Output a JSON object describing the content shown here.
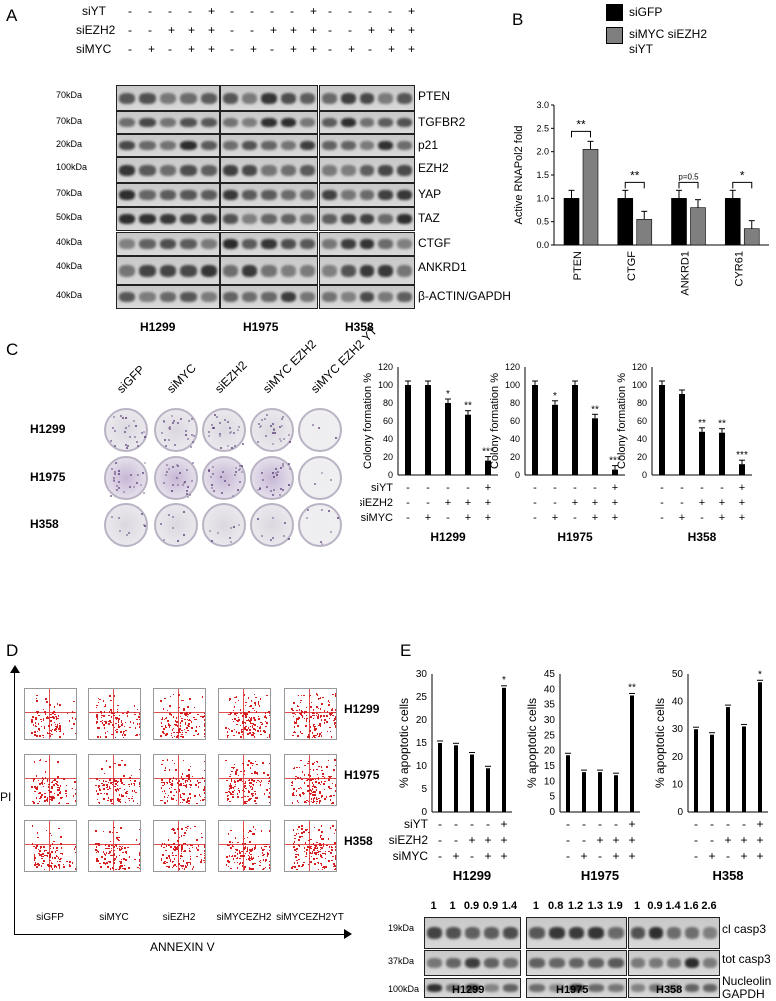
{
  "panels": {
    "A": "A",
    "B": "B",
    "C": "C",
    "D": "D",
    "E": "E"
  },
  "panelA": {
    "treat_labels": [
      "siYT",
      "siEZH2",
      "siMYC"
    ],
    "treat_signs": [
      [
        "-",
        "-",
        "-",
        "-",
        "+"
      ],
      [
        "-",
        "-",
        "+",
        "+",
        "+"
      ],
      [
        "-",
        "+",
        "-",
        "+",
        "+"
      ]
    ],
    "mw_labels": [
      "70kDa",
      "70kDa",
      "20kDa",
      "100kDa",
      "70kDa",
      "50kDa",
      "40kDa",
      "40kDa",
      "40kDa"
    ],
    "proteins": [
      "PTEN",
      "TGFBR2",
      "p21",
      "EZH2",
      "YAP",
      "TAZ",
      "CTGF",
      "ANKRD1",
      "β-ACTIN/GAPDH"
    ],
    "cell_lines": [
      "H1299",
      "H1975",
      "H358"
    ]
  },
  "panelB": {
    "legend": [
      "siGFP",
      "siMYC siEZH2\nsiYT"
    ],
    "legend_line1": "siMYC siEZH2",
    "legend_line2": "siYT",
    "colors": {
      "siGFP": "#000000",
      "treated": "#7f7f7f"
    },
    "chart_data": {
      "type": "bar",
      "ylabel": "Active RNAPol2 fold",
      "ylim": [
        0,
        3.0
      ],
      "yticks": [
        "0.0",
        "0.5",
        "1.0",
        "1.5",
        "2.0",
        "2.5",
        "3.0"
      ],
      "categories": [
        "PTEN",
        "CTGF",
        "ANKRD1",
        "CYR61"
      ],
      "series": [
        {
          "name": "siGFP",
          "values": [
            1.0,
            1.0,
            1.0,
            1.0
          ]
        },
        {
          "name": "siMYC siEZH2 siYT",
          "values": [
            2.05,
            0.55,
            0.8,
            0.35
          ]
        }
      ],
      "annotations": [
        "**",
        "**",
        "p=0.5",
        "*"
      ]
    }
  },
  "panelC": {
    "column_labels": [
      "siGFP",
      "siMYC",
      "siEZH2",
      "siMYC EZH2",
      "siMYC EZH2 YT"
    ],
    "row_labels": [
      "H1299",
      "H1975",
      "H358"
    ],
    "treat_labels": [
      "siYT",
      "siEZH2",
      "siMYC"
    ],
    "treat_signs": [
      [
        "-",
        "-",
        "-",
        "-",
        "+"
      ],
      [
        "-",
        "-",
        "+",
        "+",
        "+"
      ],
      [
        "-",
        "+",
        "-",
        "+",
        "+"
      ]
    ],
    "chart_data": [
      {
        "type": "bar",
        "title": "H1299",
        "ylabel": "Colony formation %",
        "ylim": [
          0,
          120
        ],
        "yticks": [
          "0",
          "10",
          "20",
          "30",
          "40",
          "50",
          "60",
          "70",
          "80",
          "90",
          "100",
          "110",
          "120"
        ],
        "values": [
          100,
          100,
          80,
          67,
          16
        ],
        "annotations": [
          "",
          "",
          "*",
          "**",
          "***"
        ]
      },
      {
        "type": "bar",
        "title": "H1975",
        "ylabel": "Colony formation %",
        "ylim": [
          0,
          120
        ],
        "yticks": [
          "0",
          "10",
          "20",
          "30",
          "40",
          "50",
          "60",
          "70",
          "80",
          "90",
          "100",
          "110",
          "120"
        ],
        "values": [
          100,
          78,
          100,
          63,
          6
        ],
        "annotations": [
          "",
          "*",
          "",
          "**",
          "***"
        ]
      },
      {
        "type": "bar",
        "title": "H358",
        "ylabel": "Colony formation %",
        "ylim": [
          0,
          120
        ],
        "yticks": [
          "0",
          "10",
          "20",
          "30",
          "40",
          "50",
          "60",
          "70",
          "80",
          "90",
          "100",
          "110",
          "120"
        ],
        "values": [
          100,
          90,
          48,
          47,
          12
        ],
        "annotations": [
          "",
          "",
          "**",
          "**",
          "***"
        ]
      }
    ]
  },
  "panelD": {
    "ylabel": "PI",
    "xlabel": "ANNEXIN V",
    "row_labels": [
      "H1299",
      "H1975",
      "H358"
    ],
    "column_labels": [
      "siGFP",
      "siMYC",
      "siEZH2",
      "siMYCEZH2",
      "siMYCEZH2YT"
    ]
  },
  "panelE": {
    "treat_labels": [
      "siYT",
      "siEZH2",
      "siMYC"
    ],
    "treat_signs": [
      [
        "-",
        "-",
        "-",
        "-",
        "+"
      ],
      [
        "-",
        "-",
        "+",
        "+",
        "+"
      ],
      [
        "-",
        "+",
        "-",
        "+",
        "+"
      ]
    ],
    "chart_data": [
      {
        "type": "bar",
        "title": "H1299",
        "ylabel": "% apoptotic cells",
        "ylim": [
          0,
          30
        ],
        "yticks": [
          "0",
          "5",
          "10",
          "15",
          "20",
          "25",
          "30"
        ],
        "values": [
          15,
          14.5,
          12.5,
          9.5,
          27
        ],
        "annotations": [
          "",
          "",
          "",
          "",
          "*"
        ]
      },
      {
        "type": "bar",
        "title": "H1975",
        "ylabel": "% apoptotic cells",
        "ylim": [
          0,
          45
        ],
        "yticks": [
          "0",
          "5",
          "10",
          "15",
          "20",
          "25",
          "30",
          "35",
          "40",
          "45"
        ],
        "values": [
          18.5,
          13,
          13,
          12,
          38
        ],
        "annotations": [
          "",
          "",
          "",
          "",
          "**"
        ]
      },
      {
        "type": "bar",
        "title": "H358",
        "ylabel": "% apoptotic cells",
        "ylim": [
          0,
          50
        ],
        "yticks": [
          "0",
          "10",
          "20",
          "30",
          "40",
          "50"
        ],
        "values": [
          30,
          28,
          38,
          31,
          47
        ],
        "annotations": [
          "",
          "",
          "",
          "",
          "*"
        ]
      }
    ],
    "quant": [
      [
        "1",
        "1",
        "0.9",
        "0.9",
        "1.4"
      ],
      [
        "1",
        "0.8",
        "1.2",
        "1.3",
        "1.9"
      ],
      [
        "1",
        "0.9",
        "1.4",
        "1.6",
        "2.6"
      ]
    ],
    "mw_labels": [
      "19kDa",
      "37kDa",
      "100kDa"
    ],
    "proteins": [
      "cl casp3",
      "tot casp3",
      "Nucleolin\nGAPDH"
    ],
    "protein_nucleolin": "Nucleolin",
    "protein_gapdh": "GAPDH",
    "cell_lines": [
      "H1299",
      "H1975",
      "H358"
    ]
  }
}
